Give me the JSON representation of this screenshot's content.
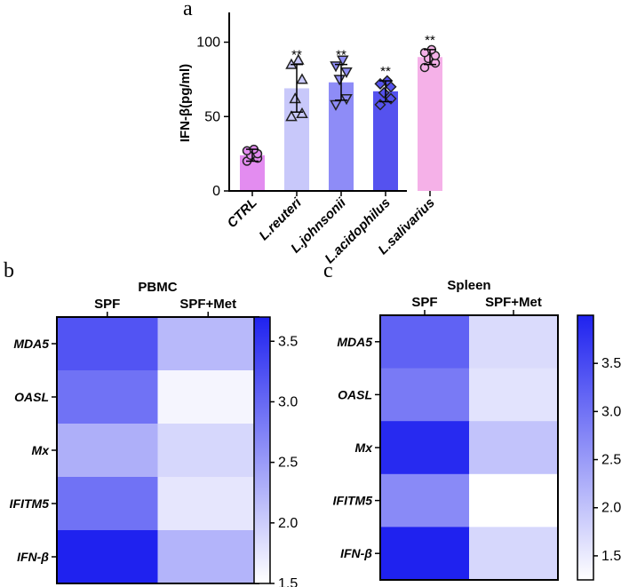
{
  "chart_data": [
    {
      "type": "bar",
      "panel": "a",
      "ylabel": "IFN-β(pg/ml)",
      "ylim": [
        0,
        120
      ],
      "yticks": [
        "0",
        "50",
        "100"
      ],
      "categories": [
        "CTRL",
        "L.reuteri",
        "L.johnsonii",
        "L.acidophilus",
        "L.salivarius"
      ],
      "values": [
        24,
        69,
        73,
        67,
        90
      ],
      "errors": [
        4,
        16,
        12,
        7,
        5
      ],
      "significance": [
        "",
        "**",
        "**",
        "**",
        "**"
      ],
      "bar_colors": [
        "#e38cf0",
        "#c8c8fa",
        "#8e8cf7",
        "#5552ef",
        "#f5b1e8"
      ],
      "markers": [
        "circle",
        "triangle-up",
        "triangle-down",
        "diamond",
        "circle"
      ],
      "points": [
        [
          20,
          22,
          24,
          25,
          27,
          28
        ],
        [
          50,
          52,
          62,
          75,
          85,
          88
        ],
        [
          58,
          62,
          75,
          80,
          84,
          88
        ],
        [
          58,
          62,
          66,
          70,
          72,
          74
        ],
        [
          83,
          86,
          89,
          91,
          93,
          95
        ]
      ]
    },
    {
      "type": "heatmap",
      "panel": "b",
      "title": "PBMC",
      "columns": [
        "SPF",
        "SPF+Met"
      ],
      "rows": [
        "MDA5",
        "OASL",
        "Mx",
        "IFITM5",
        "IFN-β"
      ],
      "values": [
        [
          3.2,
          2.2
        ],
        [
          2.9,
          1.6
        ],
        [
          2.3,
          1.9
        ],
        [
          2.9,
          1.75
        ],
        [
          3.7,
          2.25
        ]
      ],
      "scale_min": 1.5,
      "scale_max": 3.7,
      "colorbar_ticks": [
        "1.5",
        "2.0",
        "2.5",
        "3.0",
        "3.5"
      ]
    },
    {
      "type": "heatmap",
      "panel": "c",
      "title": "Spleen",
      "columns": [
        "SPF",
        "SPF+Met"
      ],
      "rows": [
        "MDA5",
        "OASL",
        "Mx",
        "IFITM5",
        "IFN-β"
      ],
      "values": [
        [
          3.2,
          1.7
        ],
        [
          2.9,
          1.6
        ],
        [
          3.9,
          2.0
        ],
        [
          2.7,
          1.25
        ],
        [
          4.0,
          1.75
        ]
      ],
      "scale_min": 1.25,
      "scale_max": 4.0,
      "colorbar_ticks": [
        "1.5",
        "2.0",
        "2.5",
        "3.0",
        "3.5"
      ]
    }
  ],
  "colors": {
    "heat_low": "#ffffff",
    "heat_high": "#1f22ef"
  }
}
